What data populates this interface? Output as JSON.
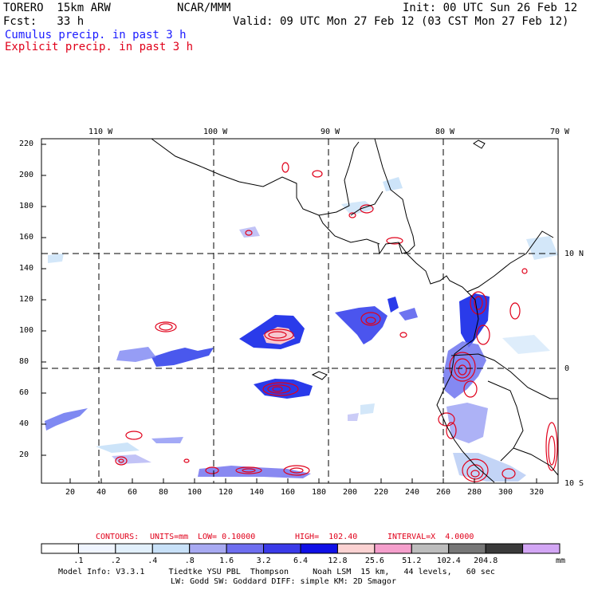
{
  "header": {
    "model": "TORERO  15km ARW",
    "org": "NCAR/MMM",
    "init": "Init: 00 UTC Sun 26 Feb 12",
    "fcst": "Fcst:   33 h",
    "valid": "Valid: 09 UTC Mon 27 Feb 12 (03 CST Mon 27 Feb 12)",
    "field1": "Cumulus precip. in past 3 h",
    "field2": "Explicit precip. in past 3 h",
    "colors": {
      "field1": "#1a1aff",
      "field2": "#e0001a"
    }
  },
  "map": {
    "top_lon_labels": [
      "110 W",
      "100 W",
      "90 W",
      "80 W",
      "70 W"
    ],
    "right_lat_labels": [
      "10 N",
      "0",
      "10 S"
    ],
    "y_ticks": [
      "220",
      "200",
      "180",
      "160",
      "140",
      "120",
      "100",
      "80",
      "60",
      "40",
      "20"
    ],
    "x_ticks": [
      "20",
      "40",
      "60",
      "80",
      "100",
      "120",
      "140",
      "160",
      "180",
      "200",
      "220",
      "240",
      "260",
      "280",
      "300",
      "320"
    ]
  },
  "contours": {
    "label": "CONTOURS:",
    "units": "UNITS=mm",
    "low": "LOW= 0.10000",
    "high": "HIGH=  102.40",
    "interval": "INTERVAL=X  4.0000"
  },
  "colorbar": {
    "colors": [
      "#ffffff",
      "#f0f5ff",
      "#e2f0fc",
      "#c8e1f8",
      "#a8aaf2",
      "#6e6ef0",
      "#3a3ae8",
      "#1010e6",
      "#fbd2d2",
      "#f59fcc",
      "#bdbdbd",
      "#777777",
      "#3a3a3a",
      "#d3a6f5"
    ],
    "labels": [
      ".1",
      ".2",
      ".4",
      ".8",
      "1.6",
      "3.2",
      "6.4",
      "12.8",
      "25.6",
      "51.2",
      "102.4",
      "204.8"
    ],
    "unit": "mm"
  },
  "footer": {
    "line1": "Model Info: V3.3.1     Tiedtke YSU PBL  Thompson     Noah LSM  15 km,   44 levels,   60 sec",
    "line2": "LW: Godd SW: Goddard DIFF: simple KM: 2D Smagor"
  }
}
